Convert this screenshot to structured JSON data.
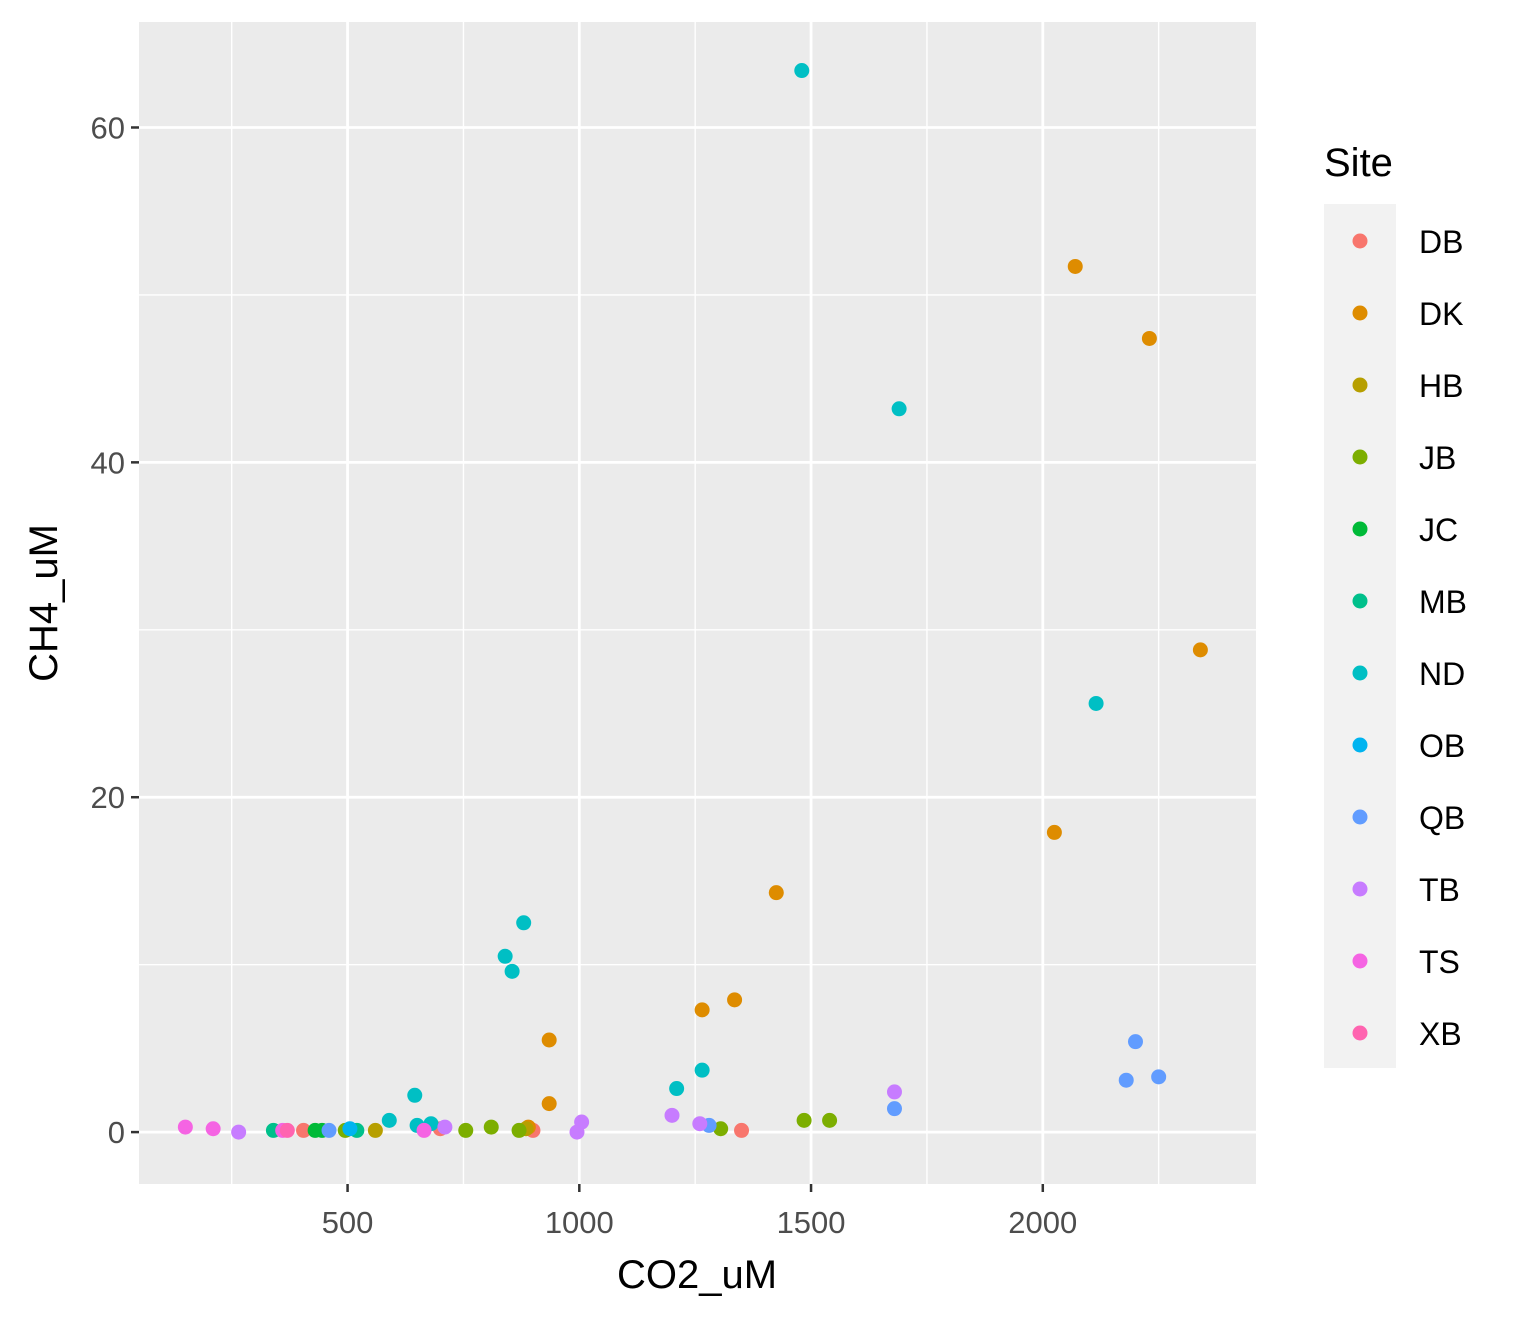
{
  "chart_data": {
    "type": "scatter",
    "xlabel": "CO2_uM",
    "ylabel": "CH4_uM",
    "xlim": [
      50,
      2460
    ],
    "ylim": [
      -3.1,
      66.3
    ],
    "x_ticks": [
      500,
      1000,
      1500,
      2000
    ],
    "x_tick_labels": [
      "500",
      "1000",
      "1500",
      "2000"
    ],
    "y_ticks": [
      0,
      20,
      40,
      60
    ],
    "y_tick_labels": [
      "0",
      "20",
      "40",
      "60"
    ],
    "grid": true,
    "background": "#ebebeb",
    "legend": {
      "title": "Site",
      "placement": "right",
      "background": "#f2f2f2"
    },
    "series": [
      {
        "name": "DB",
        "color": "#F8766D",
        "points": [
          [
            405,
            0.1
          ],
          [
            700,
            0.2
          ],
          [
            900,
            0.1
          ],
          [
            1350,
            0.1
          ]
        ]
      },
      {
        "name": "DK",
        "color": "#DE8C00",
        "points": [
          [
            890,
            0.3
          ],
          [
            935,
            1.7
          ],
          [
            935,
            5.5
          ],
          [
            1265,
            7.3
          ],
          [
            1335,
            7.9
          ],
          [
            1425,
            14.3
          ],
          [
            2025,
            17.9
          ],
          [
            2070,
            51.7
          ],
          [
            2230,
            47.4
          ],
          [
            2340,
            28.8
          ]
        ]
      },
      {
        "name": "HB",
        "color": "#B79F00",
        "points": [
          [
            560,
            0.1
          ],
          [
            885,
            0.2
          ]
        ]
      },
      {
        "name": "JB",
        "color": "#7CAE00",
        "points": [
          [
            495,
            0.1
          ],
          [
            755,
            0.1
          ],
          [
            810,
            0.3
          ],
          [
            870,
            0.1
          ],
          [
            1305,
            0.2
          ],
          [
            1485,
            0.7
          ],
          [
            1540,
            0.7
          ]
        ]
      },
      {
        "name": "JC",
        "color": "#00BA38",
        "points": [
          [
            430,
            0.1
          ],
          [
            445,
            0.1
          ]
        ]
      },
      {
        "name": "MB",
        "color": "#00C08B",
        "points": [
          [
            340,
            0.1
          ],
          [
            520,
            0.1
          ]
        ]
      },
      {
        "name": "ND",
        "color": "#00BFC4",
        "points": [
          [
            590,
            0.7
          ],
          [
            645,
            2.2
          ],
          [
            650,
            0.4
          ],
          [
            680,
            0.5
          ],
          [
            840,
            10.5
          ],
          [
            855,
            9.6
          ],
          [
            880,
            12.5
          ],
          [
            1210,
            2.6
          ],
          [
            1265,
            3.7
          ],
          [
            1480,
            63.4
          ],
          [
            1690,
            43.2
          ],
          [
            2115,
            25.6
          ]
        ]
      },
      {
        "name": "OB",
        "color": "#00B4F0",
        "points": [
          [
            505,
            0.2
          ]
        ]
      },
      {
        "name": "QB",
        "color": "#619CFF",
        "points": [
          [
            460,
            0.1
          ],
          [
            1280,
            0.4
          ],
          [
            1680,
            1.4
          ],
          [
            2180,
            3.1
          ],
          [
            2200,
            5.4
          ],
          [
            2250,
            3.3
          ]
        ]
      },
      {
        "name": "TB",
        "color": "#C77CFF",
        "points": [
          [
            265,
            0.0
          ],
          [
            710,
            0.3
          ],
          [
            995,
            0.0
          ],
          [
            1005,
            0.6
          ],
          [
            1200,
            1.0
          ],
          [
            1260,
            0.5
          ],
          [
            1680,
            2.4
          ]
        ]
      },
      {
        "name": "TS",
        "color": "#F564E3",
        "points": [
          [
            150,
            0.3
          ],
          [
            210,
            0.2
          ],
          [
            360,
            0.1
          ],
          [
            665,
            0.1
          ]
        ]
      },
      {
        "name": "XB",
        "color": "#FF64B0",
        "points": [
          [
            370,
            0.1
          ]
        ]
      }
    ]
  }
}
